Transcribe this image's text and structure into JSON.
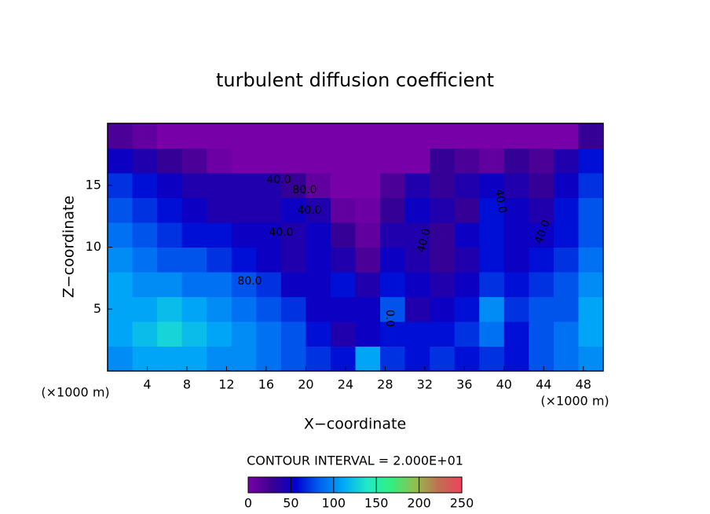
{
  "chart_data": {
    "type": "heatmap",
    "title": "turbulent diffusion coefficient",
    "x_label": "X−coordinate",
    "y_label": "Z−coordinate",
    "x_unit_left": "(×1000 m)",
    "x_unit_right": "(×1000 m)",
    "xlim": [
      0,
      50
    ],
    "ylim": [
      0,
      20
    ],
    "xticks": [
      4,
      8,
      12,
      16,
      20,
      24,
      28,
      32,
      36,
      40,
      44,
      48
    ],
    "yticks": [
      5,
      10,
      15
    ],
    "x": [
      1.25,
      3.75,
      6.25,
      8.75,
      11.25,
      13.75,
      16.25,
      18.75,
      21.25,
      23.75,
      26.25,
      28.75,
      31.25,
      33.75,
      36.25,
      38.75,
      41.25,
      43.75,
      46.25,
      48.75
    ],
    "y": [
      1,
      3,
      5,
      7,
      9,
      11,
      13,
      15,
      17,
      19
    ],
    "z": [
      [
        100,
        110,
        110,
        110,
        100,
        100,
        90,
        80,
        70,
        60,
        110,
        70,
        60,
        70,
        60,
        70,
        60,
        80,
        90,
        100
      ],
      [
        110,
        120,
        130,
        120,
        110,
        100,
        90,
        80,
        60,
        40,
        50,
        60,
        60,
        60,
        70,
        90,
        60,
        80,
        90,
        110
      ],
      [
        110,
        110,
        120,
        110,
        100,
        90,
        80,
        70,
        50,
        50,
        50,
        80,
        40,
        50,
        60,
        100,
        70,
        80,
        80,
        110
      ],
      [
        110,
        100,
        100,
        90,
        90,
        80,
        70,
        50,
        50,
        60,
        40,
        60,
        50,
        40,
        50,
        70,
        60,
        70,
        80,
        100
      ],
      [
        100,
        90,
        80,
        80,
        70,
        60,
        50,
        40,
        50,
        40,
        20,
        50,
        40,
        30,
        40,
        60,
        50,
        60,
        70,
        90
      ],
      [
        90,
        80,
        70,
        60,
        60,
        50,
        50,
        40,
        50,
        30,
        10,
        40,
        40,
        30,
        50,
        60,
        50,
        50,
        60,
        80
      ],
      [
        80,
        70,
        60,
        50,
        40,
        40,
        40,
        50,
        40,
        10,
        5,
        30,
        50,
        40,
        30,
        60,
        50,
        40,
        60,
        80
      ],
      [
        70,
        60,
        50,
        40,
        40,
        40,
        40,
        30,
        10,
        0,
        0,
        20,
        40,
        30,
        40,
        50,
        40,
        30,
        50,
        70
      ],
      [
        50,
        40,
        30,
        20,
        5,
        0,
        0,
        0,
        0,
        0,
        0,
        0,
        0,
        30,
        20,
        10,
        30,
        20,
        40,
        60
      ],
      [
        20,
        10,
        0,
        0,
        0,
        0,
        0,
        0,
        0,
        0,
        0,
        0,
        0,
        0,
        0,
        0,
        0,
        0,
        0,
        30
      ]
    ],
    "colormap": [
      "#7800a8",
      "#3a0090",
      "#0000d0",
      "#0060f0",
      "#00a8f8",
      "#20e8c8",
      "#30f080",
      "#90c050",
      "#c07050",
      "#f04060"
    ],
    "contour_labels": [
      "40.0",
      "80.0",
      "40.0",
      "40.0",
      "80.0",
      "40.0",
      "40.0",
      "40.0",
      "0.0"
    ],
    "colorbar": {
      "title": "CONTOUR INTERVAL = 2.000E+01",
      "lim": [
        0,
        250
      ],
      "ticks": [
        0,
        50,
        100,
        150,
        200,
        250
      ]
    }
  }
}
